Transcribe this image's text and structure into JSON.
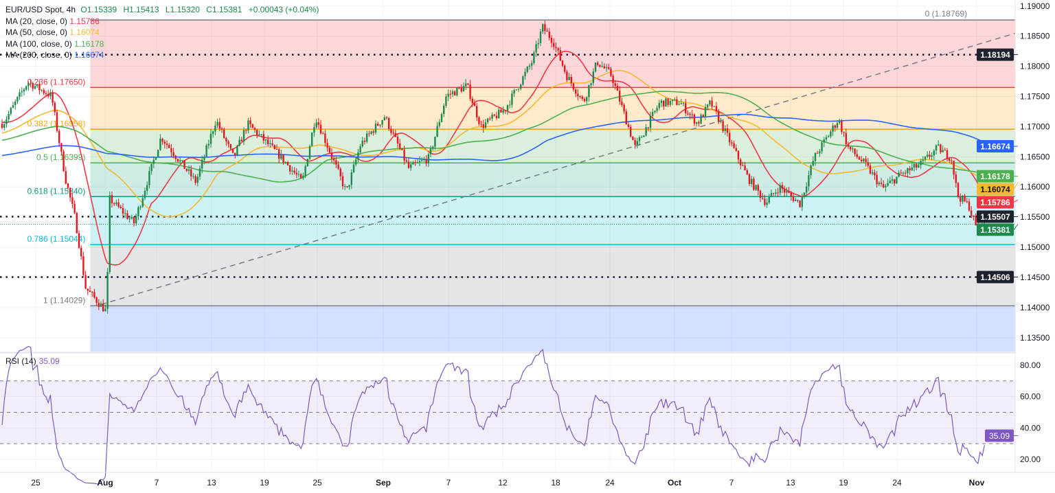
{
  "header": {
    "symbol": "EUR/USD Spot, 4h",
    "ohlc": [
      {
        "k": "O",
        "v": "1.15339"
      },
      {
        "k": "H",
        "v": "1.15413"
      },
      {
        "k": "L",
        "v": "1.15320"
      },
      {
        "k": "C",
        "v": "1.15381"
      }
    ],
    "change": "+0.00043 (+0.04%)",
    "up_color": "#1b8a4a"
  },
  "indicators": [
    {
      "label": "MA (20, close, 0)",
      "value": "1.15786",
      "period": 20,
      "color": "#f23645"
    },
    {
      "label": "MA (50, close, 0)",
      "value": "1.16074",
      "period": 50,
      "color": "#f5b82e"
    },
    {
      "label": "MA (100, close, 0)",
      "value": "1.16178",
      "period": 100,
      "color": "#4caf50"
    },
    {
      "label": "MA (200, close, 0)",
      "value": "1.16674",
      "period": 200,
      "color": "#2962ff"
    }
  ],
  "chart_data": [
    {
      "type": "candlestick",
      "title": "EUR/USD Spot, 4h",
      "ylim": [
        1.1327,
        1.191
      ],
      "y_ticks": [
        "1.13500",
        "1.14000",
        "1.14500",
        "1.15000",
        "1.15500",
        "1.16000",
        "1.16500",
        "1.17000",
        "1.17500",
        "1.18000",
        "1.18500",
        "1.19000"
      ],
      "x_ticks": [
        "25",
        "Aug",
        "7",
        "13",
        "19",
        "25",
        "Sep",
        "7",
        "12",
        "18",
        "24",
        "Oct",
        "7",
        "13",
        "19",
        "24",
        "Nov"
      ],
      "grid": true,
      "candle_colors": {
        "up": "#1b8a4a",
        "down": "#e8141c"
      },
      "price_path": [
        {
          "t": "07-21 17",
          "p": 1.1705
        },
        {
          "t": "07-24 05",
          "p": 1.1774
        },
        {
          "t": "07-26 14",
          "p": 1.1751
        },
        {
          "t": "07-28 00",
          "p": 1.1614
        },
        {
          "t": "07-29 00",
          "p": 1.1546
        },
        {
          "t": "07-30 01",
          "p": 1.1432
        },
        {
          "t": "08-01 04",
          "p": 1.1393
        },
        {
          "t": "08-01 13",
          "p": 1.158
        },
        {
          "t": "08-04 09",
          "p": 1.154
        },
        {
          "t": "08-07 12",
          "p": 1.1683
        },
        {
          "t": "08-11 07",
          "p": 1.1608
        },
        {
          "t": "08-13 12",
          "p": 1.1711
        },
        {
          "t": "08-15 12",
          "p": 1.1648
        },
        {
          "t": "08-17 02",
          "p": 1.1705
        },
        {
          "t": "08-20 23",
          "p": 1.1648
        },
        {
          "t": "08-23 07",
          "p": 1.1608
        },
        {
          "t": "08-24 19",
          "p": 1.1717
        },
        {
          "t": "08-28 02",
          "p": 1.1591
        },
        {
          "t": "08-29 14",
          "p": 1.167
        },
        {
          "t": "09-01 03",
          "p": 1.1717
        },
        {
          "t": "09-03 08",
          "p": 1.1631
        },
        {
          "t": "09-05 05",
          "p": 1.1648
        },
        {
          "t": "09-06 19",
          "p": 1.1751
        },
        {
          "t": "09-08 17",
          "p": 1.1768
        },
        {
          "t": "09-10 00",
          "p": 1.17
        },
        {
          "t": "09-12 05",
          "p": 1.1728
        },
        {
          "t": "09-15 08",
          "p": 1.1808
        },
        {
          "t": "09-16 12",
          "p": 1.1865
        },
        {
          "t": "09-17 17",
          "p": 1.1842
        },
        {
          "t": "09-19 05",
          "p": 1.1785
        },
        {
          "t": "09-21 02",
          "p": 1.174
        },
        {
          "t": "09-22 14",
          "p": 1.1808
        },
        {
          "t": "09-24 04",
          "p": 1.1785
        },
        {
          "t": "09-26 18",
          "p": 1.1665
        },
        {
          "t": "09-29 10",
          "p": 1.174
        },
        {
          "t": "10-01 14",
          "p": 1.174
        },
        {
          "t": "10-03 10",
          "p": 1.1705
        },
        {
          "t": "10-04 19",
          "p": 1.174
        },
        {
          "t": "10-07 00",
          "p": 1.167
        },
        {
          "t": "10-08 17",
          "p": 1.1614
        },
        {
          "t": "10-10 12",
          "p": 1.1574
        },
        {
          "t": "10-11 21",
          "p": 1.16
        },
        {
          "t": "10-14 02",
          "p": 1.1572
        },
        {
          "t": "10-15 16",
          "p": 1.1648
        },
        {
          "t": "10-18 10",
          "p": 1.1712
        },
        {
          "t": "10-19 11",
          "p": 1.1665
        },
        {
          "t": "10-21 01",
          "p": 1.1637
        },
        {
          "t": "10-22 16",
          "p": 1.1597
        },
        {
          "t": "10-24 07",
          "p": 1.162
        },
        {
          "t": "10-26 08",
          "p": 1.1637
        },
        {
          "t": "10-28 02",
          "p": 1.1665
        },
        {
          "t": "10-29 11",
          "p": 1.1648
        },
        {
          "t": "10-30 02",
          "p": 1.1586
        },
        {
          "t": "10-31 05",
          "p": 1.1569
        },
        {
          "t": "11-01 00",
          "p": 1.1529
        },
        {
          "t": "11-01 22",
          "p": 1.15381
        }
      ],
      "fibonacci": {
        "start": "07-30 12",
        "levels": [
          {
            "label": "0 (1.18769)",
            "price": 1.18769,
            "color": "#787b86",
            "fill": "rgba(242,54,69,0.2)"
          },
          {
            "label": "0.236 (1.17650)",
            "price": 1.1765,
            "color": "#f23645",
            "fill": "rgba(255,152,0,0.2)"
          },
          {
            "label": "0.382 (1.16958)",
            "price": 1.16958,
            "color": "#f0a30a",
            "fill": "rgba(76,175,80,0.2)"
          },
          {
            "label": "0.5 (1.16399)",
            "price": 1.16399,
            "color": "#4caf50",
            "fill": "rgba(8,153,129,0.2)"
          },
          {
            "label": "0.618 (1.15840)",
            "price": 1.1584,
            "color": "#089981",
            "fill": "rgba(0,188,212,0.2)"
          },
          {
            "label": "0.786 (1.15044)",
            "price": 1.15044,
            "color": "#00bcd4",
            "fill": "rgba(120,123,134,0.2)"
          },
          {
            "label": "1 (1.14029)",
            "price": 1.14029,
            "color": "#787b86",
            "fill": "rgba(41,98,255,0.2)"
          }
        ]
      },
      "horizontal_lines": [
        1.18194,
        1.15507,
        1.14506
      ],
      "current_price": 1.15381,
      "trend_line": [
        {
          "t": "07-31 14",
          "p": 1.1405
        },
        {
          "t": "11-04 22",
          "p": 1.1855
        }
      ],
      "price_badges": [
        {
          "value": "1.18194",
          "bg": "#1e222d",
          "fg": "#ffffff"
        },
        {
          "value": "1.16674",
          "bg": "#2962ff",
          "fg": "#ffffff"
        },
        {
          "value": "1.16178",
          "bg": "#4caf50",
          "fg": "#ffffff"
        },
        {
          "value": "1.16074",
          "bg": "#f5b82e",
          "fg": "#131722"
        },
        {
          "value": "1.15786",
          "bg": "#f23645",
          "fg": "#ffffff"
        },
        {
          "value": "1.15507",
          "bg": "#1e222d",
          "fg": "#ffffff"
        },
        {
          "value": "1.15381",
          "bg": "#1b8a4a",
          "fg": "#ffffff"
        },
        {
          "value": "1.14506",
          "bg": "#1e222d",
          "fg": "#ffffff"
        }
      ]
    },
    {
      "type": "line",
      "title": "RSI (14)",
      "current": "35.09",
      "color": "#7e57c2",
      "ylim": [
        11.7,
        87.4
      ],
      "y_ticks": [
        "20.00",
        "40.00",
        "60.00",
        "80.00"
      ],
      "bands": [
        30,
        50,
        70
      ]
    }
  ]
}
